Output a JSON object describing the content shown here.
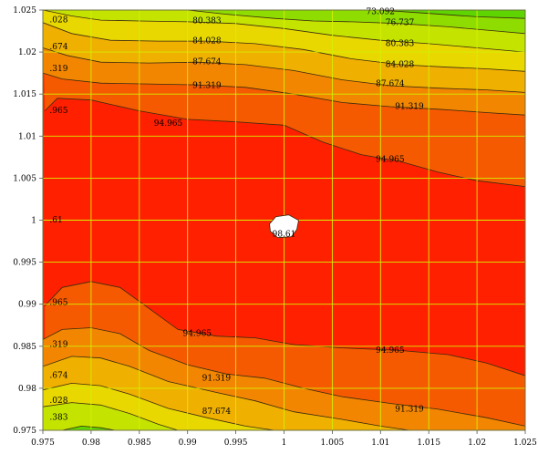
{
  "chart_data": {
    "type": "contour",
    "title": "",
    "xlabel": "",
    "ylabel": "",
    "xlim": [
      0.975,
      1.025
    ],
    "ylim": [
      0.975,
      1.025
    ],
    "x_ticks": [
      "0.975",
      "0.98",
      "0.985",
      "0.99",
      "0.995",
      "1",
      "1.005",
      "1.01",
      "1.015",
      "1.02",
      "1.025"
    ],
    "y_ticks": [
      "0.975",
      "0.98",
      "0.985",
      "0.99",
      "0.995",
      "1",
      "1.005",
      "1.01",
      "1.015",
      "1.02",
      "1.025"
    ],
    "grid": true,
    "grid_color": "#d4f000",
    "contour_levels": [
      73.092,
      76.737,
      80.383,
      84.028,
      87.674,
      91.319,
      94.965,
      98.61
    ],
    "band_colors": [
      "#5ed400",
      "#8fdc00",
      "#c4e400",
      "#e8d800",
      "#f0b000",
      "#f28600",
      "#f55a00",
      "#ff2000"
    ],
    "peak": {
      "x": 1.0,
      "y": 0.999,
      "label": "98.61",
      "color": "#ffffff"
    },
    "contour_labels": [
      {
        "text": "73.092",
        "x": 1.01,
        "y": 1.0248
      },
      {
        "text": "80.383",
        "x": 0.992,
        "y": 1.0237
      },
      {
        "text": "76.737",
        "x": 1.012,
        "y": 1.0235
      },
      {
        "text": "84.028",
        "x": 0.992,
        "y": 1.0213
      },
      {
        "text": "80.383",
        "x": 1.012,
        "y": 1.021
      },
      {
        "text": "87.674",
        "x": 0.992,
        "y": 1.0188
      },
      {
        "text": "84.028",
        "x": 1.012,
        "y": 1.0185
      },
      {
        "text": "91.319",
        "x": 0.992,
        "y": 1.016
      },
      {
        "text": "87.674",
        "x": 1.011,
        "y": 1.0162
      },
      {
        "text": "91.319",
        "x": 1.013,
        "y": 1.0135
      },
      {
        "text": "94.965",
        "x": 0.988,
        "y": 1.0115
      },
      {
        "text": "94.965",
        "x": 1.011,
        "y": 1.0072
      },
      {
        "text": "98.61",
        "x": 1.0,
        "y": 0.9983
      },
      {
        "text": "94.965",
        "x": 0.991,
        "y": 0.9865
      },
      {
        "text": "94.965",
        "x": 1.011,
        "y": 0.9845
      },
      {
        "text": "91.319",
        "x": 0.993,
        "y": 0.9812
      },
      {
        "text": "87.674",
        "x": 0.993,
        "y": 0.9772
      },
      {
        "text": "91.319",
        "x": 1.013,
        "y": 0.9775
      },
      {
        "text": ".028",
        "x": 0.9757,
        "y": 1.0238
      },
      {
        "text": ".674",
        "x": 0.9757,
        "y": 1.0206
      },
      {
        "text": ".319",
        "x": 0.9757,
        "y": 1.018
      },
      {
        "text": ".965",
        "x": 0.9757,
        "y": 1.013
      },
      {
        "text": ".61",
        "x": 0.9757,
        "y": 1.0
      },
      {
        "text": ".965",
        "x": 0.9757,
        "y": 0.9902
      },
      {
        "text": ".319",
        "x": 0.9757,
        "y": 0.9852
      },
      {
        "text": ".674",
        "x": 0.9757,
        "y": 0.9815
      },
      {
        "text": ".028",
        "x": 0.9757,
        "y": 0.9785
      },
      {
        "text": ".383",
        "x": 0.9757,
        "y": 0.9765
      }
    ],
    "contours": [
      {
        "level": 73.092,
        "points": [
          [
            1.0098,
            1.025
          ],
          [
            1.015,
            1.0246
          ],
          [
            1.02,
            1.0242
          ],
          [
            1.025,
            1.024
          ]
        ]
      },
      {
        "level": 76.737,
        "points": [
          [
            0.99,
            1.025
          ],
          [
            0.994,
            1.0245
          ],
          [
            0.999,
            1.024
          ],
          [
            1.003,
            1.0237
          ],
          [
            1.007,
            1.0236
          ],
          [
            1.012,
            1.0234
          ],
          [
            1.017,
            1.023
          ],
          [
            1.022,
            1.0225
          ],
          [
            1.025,
            1.0222
          ]
        ]
      },
      {
        "level": 80.383,
        "points": [
          [
            0.975,
            1.025
          ],
          [
            0.978,
            1.0243
          ],
          [
            0.981,
            1.0238
          ],
          [
            0.985,
            1.0237
          ],
          [
            0.99,
            1.0236
          ],
          [
            0.995,
            1.0234
          ],
          [
            1.0,
            1.0228
          ],
          [
            1.005,
            1.022
          ],
          [
            1.01,
            1.0214
          ],
          [
            1.015,
            1.021
          ],
          [
            1.02,
            1.0205
          ],
          [
            1.025,
            1.02
          ]
        ]
      },
      {
        "level": 84.028,
        "points": [
          [
            0.975,
            1.0235
          ],
          [
            0.978,
            1.0222
          ],
          [
            0.982,
            1.0214
          ],
          [
            0.987,
            1.0213
          ],
          [
            0.992,
            1.0213
          ],
          [
            0.997,
            1.021
          ],
          [
            1.002,
            1.0203
          ],
          [
            1.007,
            1.0192
          ],
          [
            1.012,
            1.0185
          ],
          [
            1.017,
            1.0182
          ],
          [
            1.021,
            1.018
          ],
          [
            1.025,
            1.0177
          ]
        ]
      },
      {
        "level": 87.674,
        "points": [
          [
            0.975,
            1.0205
          ],
          [
            0.9775,
            1.0196
          ],
          [
            0.981,
            1.0188
          ],
          [
            0.986,
            1.0187
          ],
          [
            0.991,
            1.0188
          ],
          [
            0.996,
            1.0185
          ],
          [
            1.001,
            1.0178
          ],
          [
            1.006,
            1.0167
          ],
          [
            1.011,
            1.016
          ],
          [
            1.016,
            1.0157
          ],
          [
            1.021,
            1.0155
          ],
          [
            1.025,
            1.0152
          ]
        ]
      },
      {
        "level": 91.319,
        "points": [
          [
            0.975,
            1.0175
          ],
          [
            0.977,
            1.0168
          ],
          [
            0.981,
            1.0163
          ],
          [
            0.986,
            1.0162
          ],
          [
            0.991,
            1.0161
          ],
          [
            0.996,
            1.0158
          ],
          [
            1.001,
            1.015
          ],
          [
            1.006,
            1.014
          ],
          [
            1.011,
            1.0135
          ],
          [
            1.016,
            1.0132
          ],
          [
            1.021,
            1.0128
          ],
          [
            1.025,
            1.0125
          ]
        ]
      },
      {
        "level": 94.965,
        "points": [
          [
            0.9752,
            1.013
          ],
          [
            0.9765,
            1.0145
          ],
          [
            0.98,
            1.0143
          ],
          [
            0.985,
            1.013
          ],
          [
            0.99,
            1.012
          ],
          [
            0.995,
            1.0117
          ],
          [
            1.0,
            1.0113
          ],
          [
            1.004,
            1.0093
          ],
          [
            1.008,
            1.0078
          ],
          [
            1.012,
            1.007
          ],
          [
            1.016,
            1.0057
          ],
          [
            1.02,
            1.0047
          ],
          [
            1.025,
            1.004
          ]
        ]
      },
      {
        "level": 94.965,
        "points": [
          [
            0.9752,
            0.9898
          ],
          [
            0.977,
            0.992
          ],
          [
            0.98,
            0.9927
          ],
          [
            0.983,
            0.992
          ],
          [
            0.986,
            0.9895
          ],
          [
            0.989,
            0.987
          ],
          [
            0.993,
            0.9862
          ],
          [
            0.997,
            0.986
          ],
          [
            1.001,
            0.9852
          ],
          [
            1.006,
            0.9848
          ],
          [
            1.012,
            0.9845
          ],
          [
            1.017,
            0.984
          ],
          [
            1.021,
            0.983
          ],
          [
            1.025,
            0.9815
          ]
        ]
      },
      {
        "level": 91.319,
        "points": [
          [
            0.975,
            0.9858
          ],
          [
            0.977,
            0.987
          ],
          [
            0.98,
            0.9872
          ],
          [
            0.983,
            0.9865
          ],
          [
            0.986,
            0.9845
          ],
          [
            0.99,
            0.9828
          ],
          [
            0.994,
            0.9817
          ],
          [
            0.998,
            0.9812
          ],
          [
            1.002,
            0.98
          ],
          [
            1.006,
            0.979
          ],
          [
            1.011,
            0.9782
          ],
          [
            1.016,
            0.9775
          ],
          [
            1.021,
            0.9765
          ],
          [
            1.025,
            0.9755
          ]
        ]
      },
      {
        "level": 87.674,
        "points": [
          [
            0.975,
            0.9826
          ],
          [
            0.978,
            0.9838
          ],
          [
            0.981,
            0.9836
          ],
          [
            0.984,
            0.9826
          ],
          [
            0.988,
            0.9808
          ],
          [
            0.993,
            0.9795
          ],
          [
            0.997,
            0.9785
          ],
          [
            1.001,
            0.9772
          ],
          [
            1.006,
            0.9763
          ],
          [
            1.01,
            0.9755
          ],
          [
            1.013,
            0.975
          ]
        ]
      },
      {
        "level": 84.028,
        "points": [
          [
            0.975,
            0.9798
          ],
          [
            0.978,
            0.9806
          ],
          [
            0.981,
            0.9803
          ],
          [
            0.984,
            0.9793
          ],
          [
            0.988,
            0.9776
          ],
          [
            0.992,
            0.9765
          ],
          [
            0.996,
            0.9755
          ],
          [
            0.999,
            0.975
          ]
        ]
      },
      {
        "level": 80.383,
        "points": [
          [
            0.975,
            0.9778
          ],
          [
            0.978,
            0.9783
          ],
          [
            0.981,
            0.978
          ],
          [
            0.984,
            0.977
          ],
          [
            0.987,
            0.9757
          ],
          [
            0.989,
            0.975
          ]
        ]
      },
      {
        "level": 76.737,
        "points": [
          [
            0.977,
            0.975
          ],
          [
            0.979,
            0.9755
          ],
          [
            0.981,
            0.9753
          ],
          [
            0.9825,
            0.975
          ]
        ]
      }
    ]
  }
}
